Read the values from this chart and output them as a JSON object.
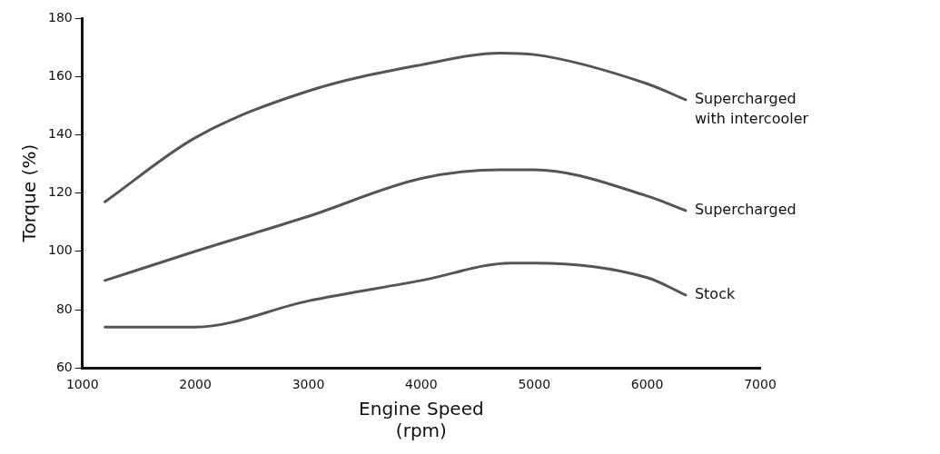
{
  "chart_data": {
    "type": "line",
    "xlabel": "Engine Speed\n(rpm)",
    "ylabel": "Torque (%)",
    "xlim": [
      1000,
      7000
    ],
    "xticks": [
      1000,
      2000,
      3000,
      4000,
      5000,
      6000,
      7000
    ],
    "ylim": [
      60,
      180
    ],
    "yticks": [
      60,
      80,
      100,
      120,
      140,
      160,
      180
    ],
    "grid": false,
    "legend": false,
    "marker": "none",
    "line_style": "solid",
    "series": [
      {
        "name": "Supercharged\nwith intercooler",
        "color": "#555555",
        "x": [
          1200,
          2000,
          3000,
          4000,
          4700,
          5000,
          6000,
          6340
        ],
        "values": [
          117,
          139,
          155,
          164,
          168,
          167.5,
          157.5,
          152
        ]
      },
      {
        "name": "Supercharged",
        "color": "#555555",
        "x": [
          1200,
          2000,
          3000,
          4000,
          4700,
          5000,
          6000,
          6340
        ],
        "values": [
          90,
          100,
          112,
          125,
          128,
          128,
          119,
          114
        ]
      },
      {
        "name": "Stock",
        "color": "#555555",
        "x": [
          1200,
          2000,
          3000,
          4000,
          4800,
          5000,
          6000,
          6340
        ],
        "values": [
          74,
          74,
          83,
          90,
          96,
          96,
          91,
          85
        ]
      }
    ]
  }
}
